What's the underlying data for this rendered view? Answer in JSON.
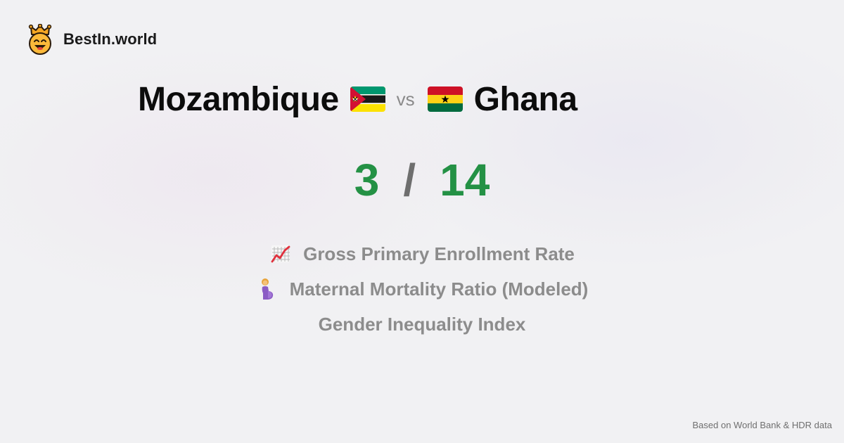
{
  "brand": {
    "name": "BestIn.world",
    "logo_icon": "smiling-face-with-crown-icon"
  },
  "comparison": {
    "left_country": "Mozambique",
    "left_flag_icon": "mozambique-flag-icon",
    "vs_label": "vs",
    "right_country": "Ghana",
    "right_flag_icon": "ghana-flag-icon"
  },
  "score": {
    "left": "3",
    "separator": "/",
    "right": "14",
    "color": "#249145"
  },
  "metrics": [
    {
      "icon": "chart-increasing-icon",
      "label": "Gross Primary Enrollment Rate"
    },
    {
      "icon": "pregnant-woman-icon",
      "label": "Maternal Mortality Ratio (Modeled)"
    },
    {
      "icon": "",
      "label": "Gender Inequality Index"
    }
  ],
  "footer": {
    "note": "Based on World Bank & HDR data"
  },
  "colors": {
    "background": "#f1f1f3",
    "title": "#0c0c0c",
    "metric_text": "#8c8c8c",
    "accent_green": "#249145"
  }
}
